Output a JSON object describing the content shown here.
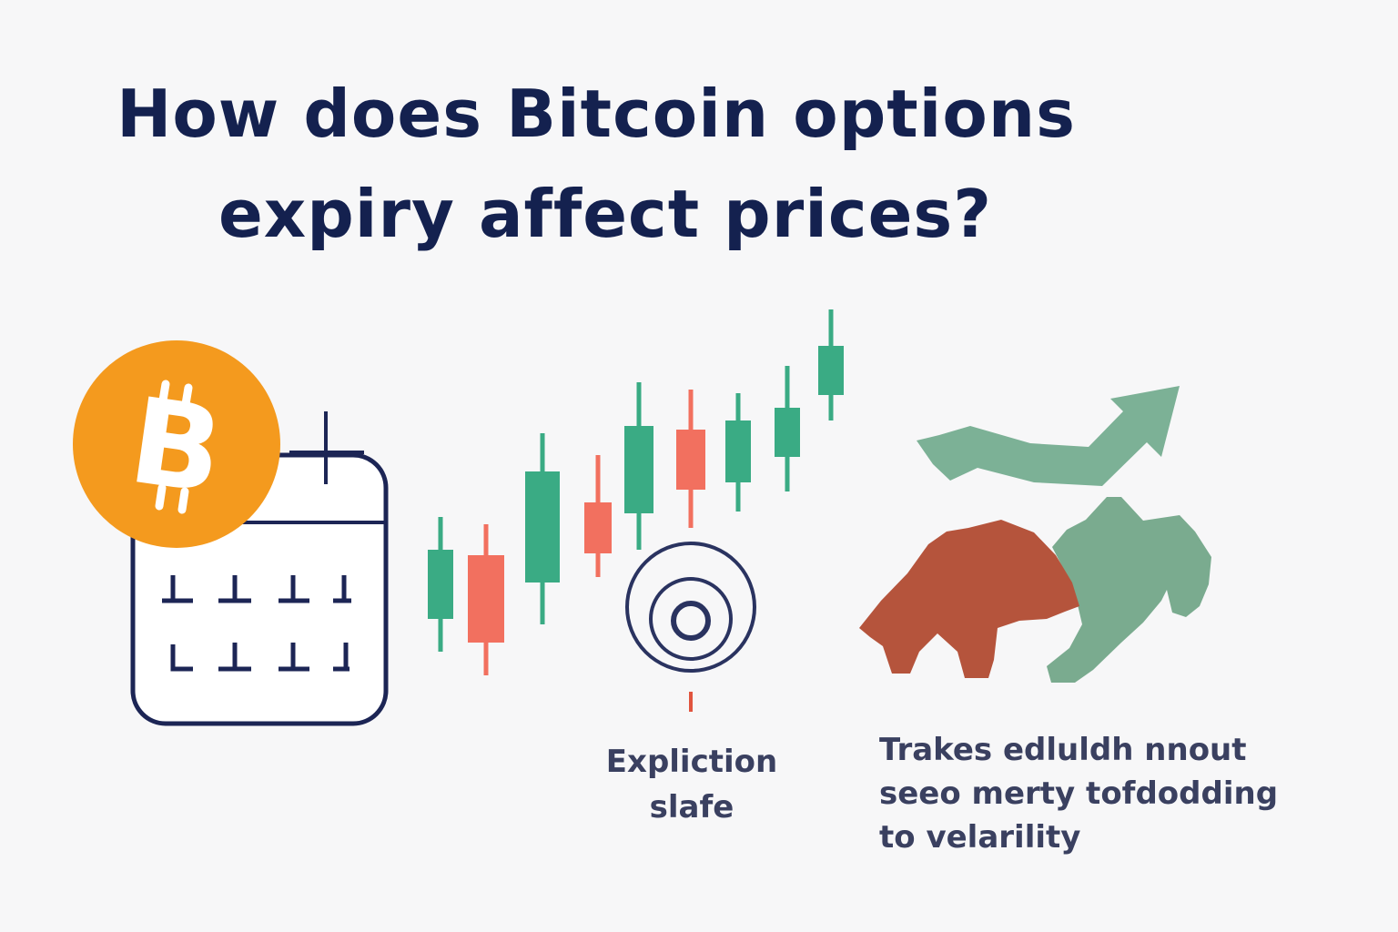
{
  "title": {
    "line1": "How does Bitcoin options",
    "line2": "expiry affect prices?"
  },
  "icons": {
    "bitcoin": "bitcoin-icon",
    "calendar": "calendar-icon",
    "candles": "candlestick-chart-icon",
    "target": "target-icon",
    "trend": "trend-up-arrow-icon",
    "bear_bull": "bear-bull-icon"
  },
  "bitcoin_symbol": "B",
  "captions": {
    "target_line1": "Expliction",
    "target_line2": "slafe",
    "trade_line1": "Trakes edluldh nnout",
    "trade_line2": "seeo merty tofdodding",
    "trade_line3": "to velarility"
  },
  "colors": {
    "title": "#14214f",
    "bitcoin": "#f49a1e",
    "bull_green": "#3aab84",
    "bear_red": "#f2705f",
    "bear_brown": "#b5543c",
    "bull_sage": "#7aab8f",
    "navy": "#1c2555"
  }
}
